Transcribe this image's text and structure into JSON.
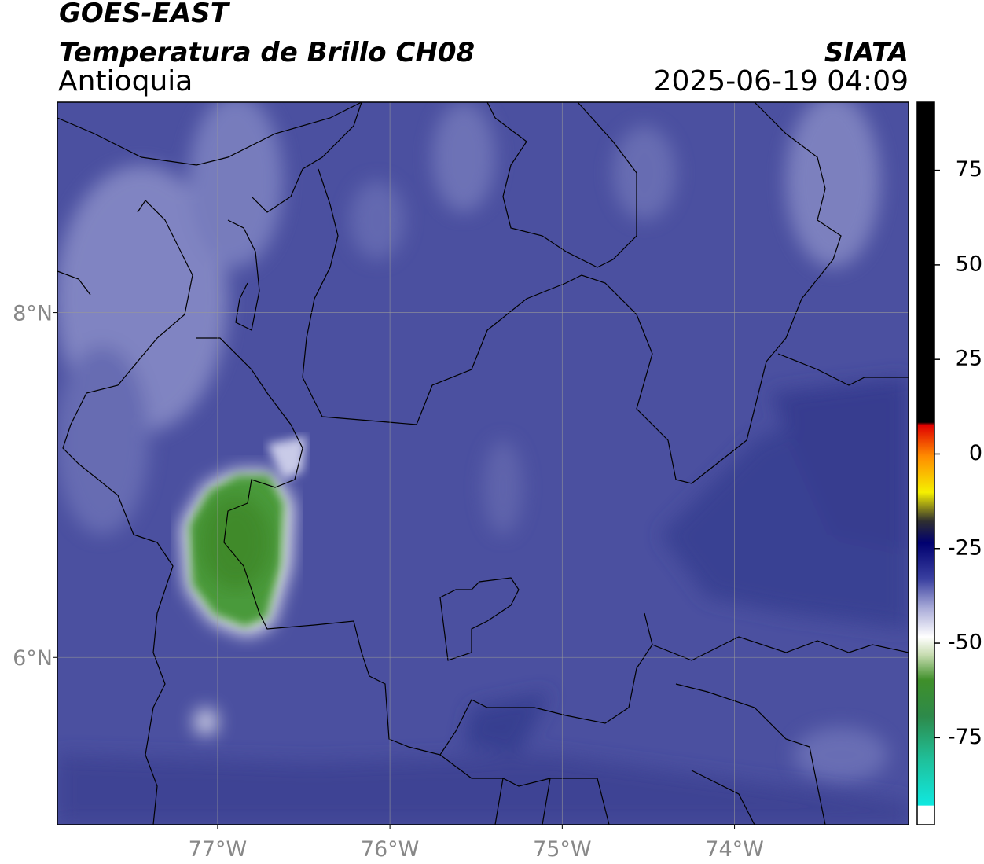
{
  "header": {
    "title": "GOES-EAST",
    "subtitle": "Temperatura de Brillo CH08",
    "region": "Antioquia",
    "source": "SIATA",
    "timestamp": "2025-06-19 04:09"
  },
  "map": {
    "xlim": [
      -77.93,
      -72.99
    ],
    "ylim": [
      5.03,
      9.22
    ],
    "xticks": [
      {
        "value": -77,
        "label": "77°W"
      },
      {
        "value": -76,
        "label": "76°W"
      },
      {
        "value": -75,
        "label": "75°W"
      },
      {
        "value": -74,
        "label": "74°W"
      }
    ],
    "yticks": [
      {
        "value": 6,
        "label": "6°N"
      },
      {
        "value": 8,
        "label": "8°N"
      }
    ],
    "grid": true
  },
  "colorbar": {
    "lim": [
      -98,
      93
    ],
    "ticks": [
      75,
      50,
      25,
      0,
      -25,
      -50,
      -75
    ]
  }
}
